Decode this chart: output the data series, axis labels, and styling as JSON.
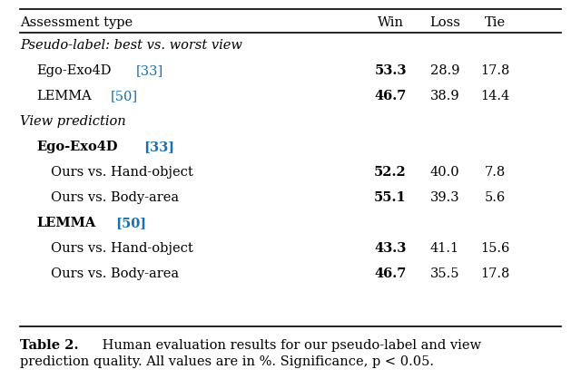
{
  "title": "Table 2.",
  "caption_line1": "Human evaluation results for our pseudo-label and view",
  "caption_line2": "prediction quality. All values are in %. Significance, p < 0.05.",
  "header": [
    "Assessment type",
    "Win",
    "Loss",
    "Tie"
  ],
  "rows": [
    {
      "label": "Pseudo-label: best vs. worst view",
      "italic": true,
      "bold": false,
      "indent": 0,
      "win": null,
      "loss": null,
      "tie": null,
      "ref": null
    },
    {
      "label": "Ego-Exo4D",
      "ref": "33",
      "italic": false,
      "bold": false,
      "indent": 1,
      "win": "53.3",
      "loss": "28.9",
      "tie": "17.8",
      "win_bold": true
    },
    {
      "label": "LEMMA",
      "ref": "50",
      "italic": false,
      "bold": false,
      "indent": 1,
      "win": "46.7",
      "loss": "38.9",
      "tie": "14.4",
      "win_bold": true
    },
    {
      "label": "View prediction",
      "italic": true,
      "bold": false,
      "indent": 0,
      "win": null,
      "loss": null,
      "tie": null,
      "ref": null
    },
    {
      "label": "Ego-Exo4D",
      "ref": "33",
      "italic": false,
      "bold": true,
      "indent": 1,
      "win": null,
      "loss": null,
      "tie": null
    },
    {
      "label": "Ours vs. Hand-object",
      "italic": false,
      "bold": false,
      "indent": 2,
      "win": "52.2",
      "loss": "40.0",
      "tie": "7.8",
      "win_bold": true,
      "ref": null
    },
    {
      "label": "Ours vs. Body-area",
      "italic": false,
      "bold": false,
      "indent": 2,
      "win": "55.1",
      "loss": "39.3",
      "tie": "5.6",
      "win_bold": true,
      "ref": null
    },
    {
      "label": "LEMMA",
      "ref": "50",
      "italic": false,
      "bold": true,
      "indent": 1,
      "win": null,
      "loss": null,
      "tie": null
    },
    {
      "label": "Ours vs. Hand-object",
      "italic": false,
      "bold": false,
      "indent": 2,
      "win": "43.3",
      "loss": "41.1",
      "tie": "15.6",
      "win_bold": true,
      "ref": null
    },
    {
      "label": "Ours vs. Body-area",
      "italic": false,
      "bold": false,
      "indent": 2,
      "win": "46.7",
      "loss": "35.5",
      "tie": "17.8",
      "win_bold": true,
      "ref": null
    }
  ],
  "ref_color": "#1a6faf",
  "background_color": "#ffffff",
  "text_color": "#000000",
  "fontsize": 10.5,
  "caption_fontsize": 10.5
}
